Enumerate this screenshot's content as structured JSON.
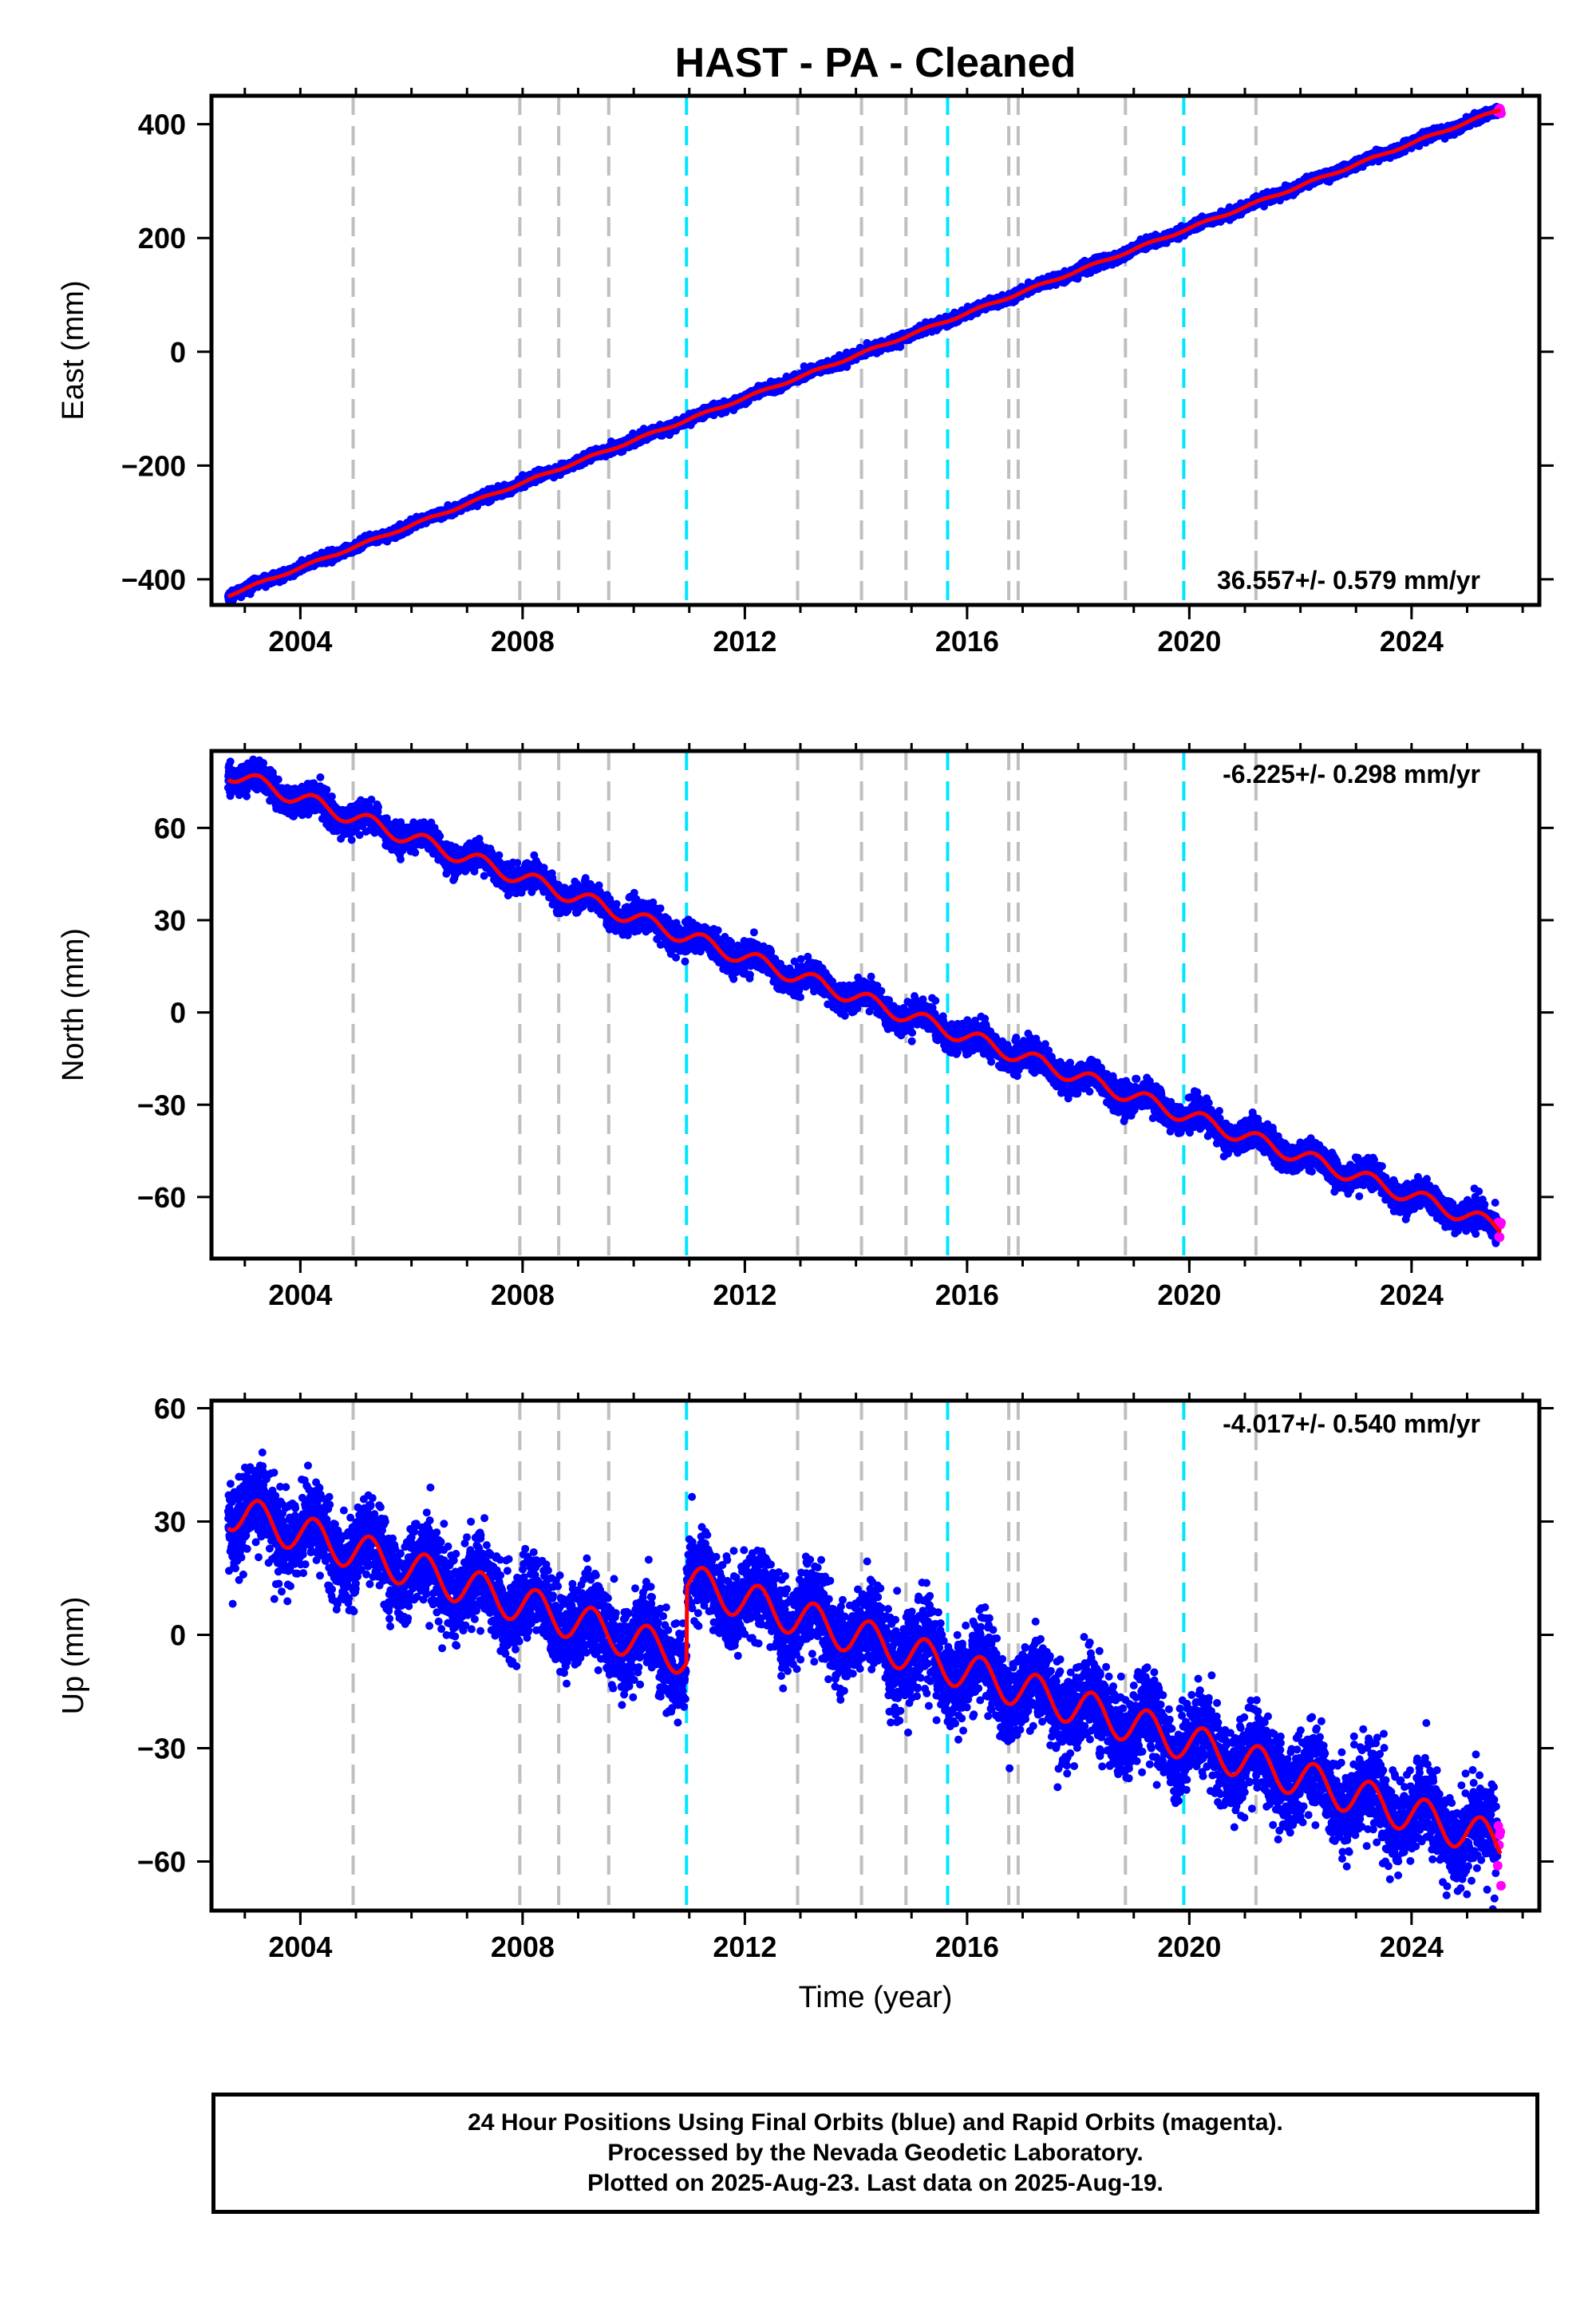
{
  "title": "HAST  - PA - Cleaned",
  "colors": {
    "data": "#0000ff",
    "rapid": "#ff00ff",
    "model": "#ff0000",
    "step_equipment": "#bfbfbf",
    "step_earthquake": "#00e5ff"
  },
  "x_axis": {
    "label": "Time (year)",
    "range": [
      2002.4,
      2026.3
    ],
    "ticks": [
      2004,
      2008,
      2012,
      2016,
      2020,
      2024
    ]
  },
  "steps": {
    "equipment": [
      2004.95,
      2007.95,
      2008.65,
      2009.55,
      2012.95,
      2014.1,
      2014.9,
      2016.75,
      2016.92,
      2018.85,
      2021.2
    ],
    "earthquake": [
      2010.95,
      2015.65,
      2019.9
    ]
  },
  "chart_data": [
    {
      "type": "scatter",
      "panel": "east",
      "ylabel": "East (mm)",
      "ylim": [
        -445,
        450
      ],
      "yticks": [
        400,
        200,
        0,
        -200,
        -400
      ],
      "ytick_labels": [
        "400",
        "200",
        "0",
        "−200",
        "−400"
      ],
      "velocity": "36.557+/- 0.579 mm/yr",
      "start": [
        2002.7,
        -428
      ],
      "end": [
        2025.6,
        426
      ],
      "rate": 36.557,
      "scatter_sd": 4,
      "seasonal_amp": 2,
      "offsets": []
    },
    {
      "type": "scatter",
      "panel": "north",
      "ylabel": "North (mm)",
      "ylim": [
        -80,
        85
      ],
      "yticks": [
        60,
        30,
        0,
        -30,
        -60
      ],
      "ytick_labels": [
        "60",
        "30",
        "0",
        "−30",
        "−60"
      ],
      "velocity": "-6.225+/- 0.298 mm/yr",
      "start": [
        2002.7,
        78
      ],
      "end": [
        2025.6,
        -70
      ],
      "rate": -6.225,
      "scatter_sd": 2.2,
      "seasonal_amp": 2.5,
      "offsets": []
    },
    {
      "type": "scatter",
      "panel": "up",
      "ylabel": "Up (mm)",
      "ylim": [
        -73,
        62
      ],
      "yticks": [
        60,
        30,
        0,
        -30,
        -60
      ],
      "ytick_labels": [
        "60",
        "30",
        "0",
        "−30",
        "−60"
      ],
      "velocity": "-4.017+/- 0.540 mm/yr",
      "start": [
        2002.7,
        33
      ],
      "end": [
        2025.6,
        -55
      ],
      "rate": -4.017,
      "scatter_sd": 5.5,
      "seasonal_amp": 5,
      "offsets": [
        [
          2010.95,
          20
        ]
      ]
    }
  ],
  "footer": {
    "line1": "24 Hour Positions Using Final Orbits (blue) and Rapid Orbits (magenta).",
    "line2": "Processed by the Nevada Geodetic Laboratory.",
    "line3": "Plotted on 2025-Aug-23. Last data on 2025-Aug-19."
  }
}
